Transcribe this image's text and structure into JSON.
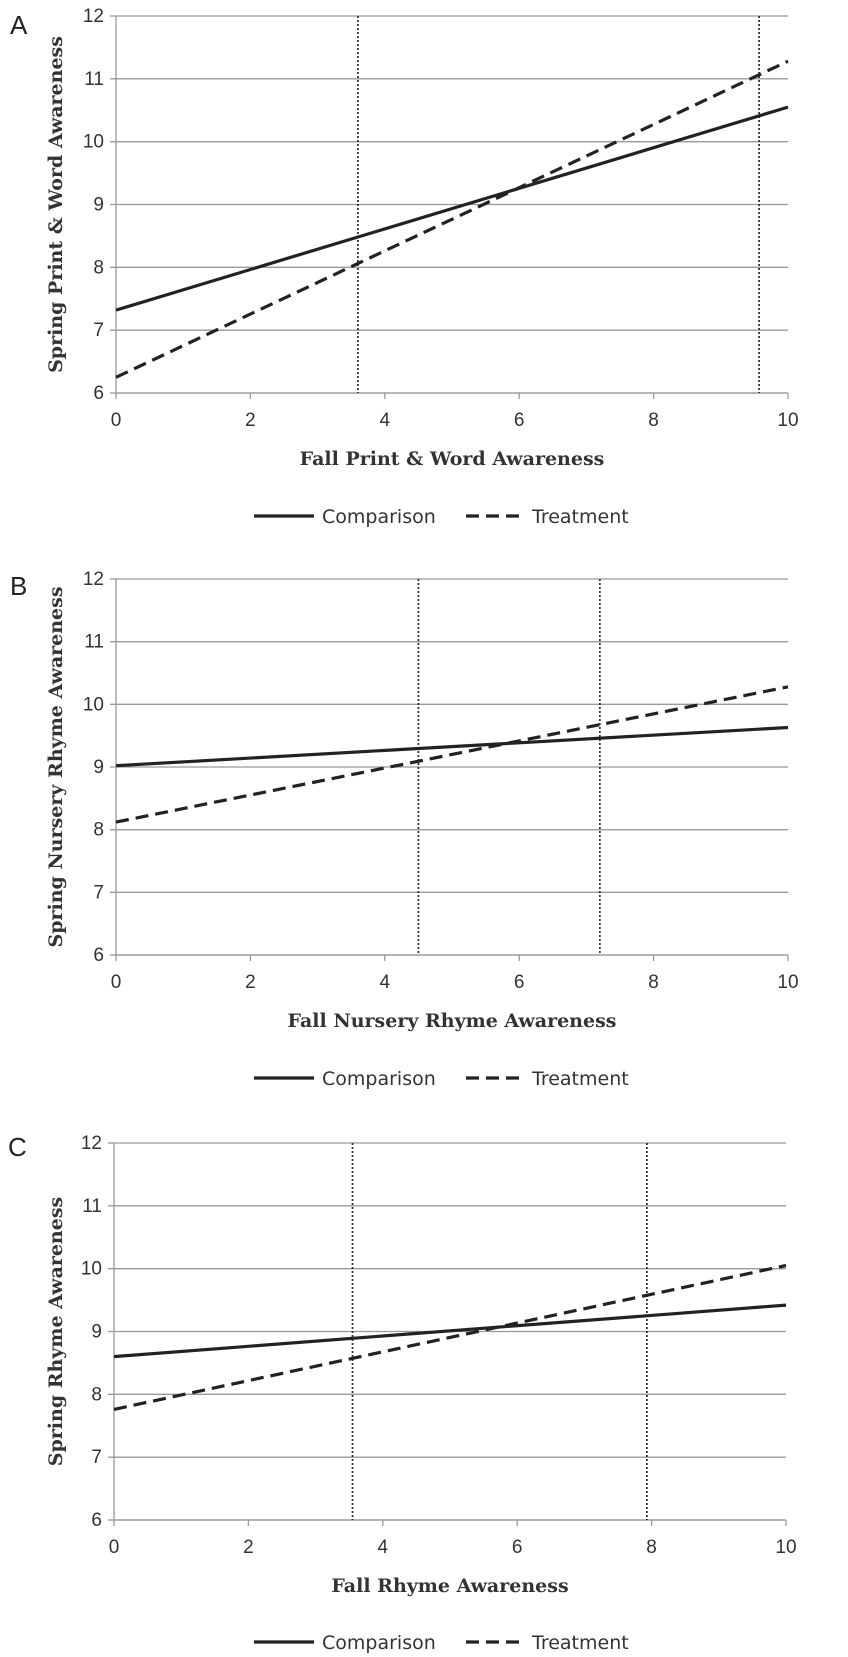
{
  "chart_data": [
    {
      "type": "line",
      "panel": "A",
      "xlabel": "Fall Print & Word Awareness",
      "ylabel": "Spring Print & Word Awareness",
      "xlim": [
        0,
        10
      ],
      "ylim": [
        6,
        12
      ],
      "x_ticks": [
        "0",
        "2",
        "4",
        "6",
        "8",
        "10"
      ],
      "y_ticks": [
        "6",
        "7",
        "8",
        "9",
        "10",
        "11",
        "12"
      ],
      "grid": "horizontal",
      "legend_position": "bottom",
      "series": [
        {
          "name": "Comparison",
          "style": "solid",
          "x": [
            0,
            10
          ],
          "y": [
            7.32,
            10.55
          ]
        },
        {
          "name": "Treatment",
          "style": "dashed",
          "x": [
            0,
            10
          ],
          "y": [
            6.25,
            11.28
          ]
        }
      ],
      "reference_lines": [
        3.6,
        9.57
      ]
    },
    {
      "type": "line",
      "panel": "B",
      "xlabel": "Fall Nursery Rhyme Awareness",
      "ylabel": "Spring Nursery Rhyme Awareness",
      "xlim": [
        0,
        10
      ],
      "ylim": [
        6,
        12
      ],
      "x_ticks": [
        "0",
        "2",
        "4",
        "6",
        "8",
        "10"
      ],
      "y_ticks": [
        "6",
        "7",
        "8",
        "9",
        "10",
        "11",
        "12"
      ],
      "grid": "horizontal",
      "legend_position": "bottom",
      "series": [
        {
          "name": "Comparison",
          "style": "solid",
          "x": [
            0,
            10
          ],
          "y": [
            9.02,
            9.63
          ]
        },
        {
          "name": "Treatment",
          "style": "dashed",
          "x": [
            0,
            10
          ],
          "y": [
            8.12,
            10.28
          ]
        }
      ],
      "reference_lines": [
        4.5,
        7.2
      ]
    },
    {
      "type": "line",
      "panel": "C",
      "xlabel": "Fall Rhyme Awareness",
      "ylabel": "Spring Rhyme Awareness",
      "xlim": [
        0,
        10
      ],
      "ylim": [
        6,
        12
      ],
      "x_ticks": [
        "0",
        "2",
        "4",
        "6",
        "8",
        "10"
      ],
      "y_ticks": [
        "6",
        "7",
        "8",
        "9",
        "10",
        "11",
        "12"
      ],
      "grid": "horizontal",
      "legend_position": "bottom",
      "series": [
        {
          "name": "Comparison",
          "style": "solid",
          "x": [
            0,
            10
          ],
          "y": [
            8.6,
            9.42
          ]
        },
        {
          "name": "Treatment",
          "style": "dashed",
          "x": [
            0,
            10
          ],
          "y": [
            7.76,
            10.05
          ]
        }
      ],
      "reference_lines": [
        3.55,
        7.93
      ]
    }
  ],
  "colors": {
    "line": "#222222",
    "grid": "#999999",
    "reference": "#333333",
    "text": "#333333"
  }
}
